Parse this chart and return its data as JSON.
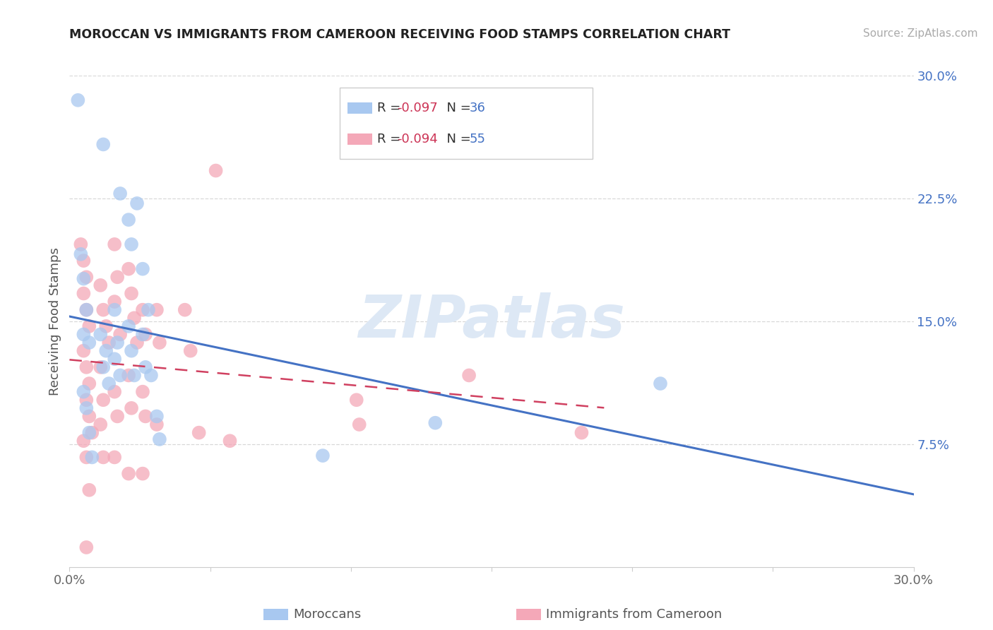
{
  "title": "MOROCCAN VS IMMIGRANTS FROM CAMEROON RECEIVING FOOD STAMPS CORRELATION CHART",
  "source": "Source: ZipAtlas.com",
  "ylabel": "Receiving Food Stamps",
  "x_min": 0.0,
  "x_max": 0.3,
  "y_min": 0.0,
  "y_max": 0.3,
  "x_ticks": [
    0.0,
    0.05,
    0.1,
    0.15,
    0.2,
    0.25,
    0.3
  ],
  "x_tick_labels": [
    "0.0%",
    "",
    "",
    "",
    "",
    "",
    "30.0%"
  ],
  "y_ticks_right": [
    0.3,
    0.225,
    0.15,
    0.075
  ],
  "y_tick_labels_right": [
    "30.0%",
    "22.5%",
    "15.0%",
    "7.5%"
  ],
  "legend_r1": "R = -0.097",
  "legend_n1": "N = 36",
  "legend_r2": "R = -0.094",
  "legend_n2": "N = 55",
  "moroccans_x": [
    0.003,
    0.012,
    0.018,
    0.021,
    0.022,
    0.024,
    0.026,
    0.028,
    0.032,
    0.004,
    0.005,
    0.006,
    0.005,
    0.007,
    0.011,
    0.013,
    0.012,
    0.014,
    0.016,
    0.017,
    0.016,
    0.018,
    0.021,
    0.022,
    0.023,
    0.026,
    0.027,
    0.029,
    0.031,
    0.005,
    0.006,
    0.007,
    0.008,
    0.21,
    0.13,
    0.09
  ],
  "moroccans_y": [
    0.285,
    0.258,
    0.228,
    0.212,
    0.197,
    0.222,
    0.182,
    0.157,
    0.078,
    0.191,
    0.176,
    0.157,
    0.142,
    0.137,
    0.142,
    0.132,
    0.122,
    0.112,
    0.157,
    0.137,
    0.127,
    0.117,
    0.147,
    0.132,
    0.117,
    0.142,
    0.122,
    0.117,
    0.092,
    0.107,
    0.097,
    0.082,
    0.067,
    0.112,
    0.088,
    0.068
  ],
  "cameroon_x": [
    0.004,
    0.005,
    0.006,
    0.005,
    0.006,
    0.007,
    0.011,
    0.012,
    0.013,
    0.014,
    0.016,
    0.017,
    0.016,
    0.018,
    0.021,
    0.022,
    0.023,
    0.024,
    0.026,
    0.027,
    0.031,
    0.032,
    0.041,
    0.043,
    0.052,
    0.005,
    0.006,
    0.007,
    0.006,
    0.007,
    0.008,
    0.011,
    0.012,
    0.016,
    0.017,
    0.021,
    0.022,
    0.026,
    0.027,
    0.031,
    0.046,
    0.057,
    0.102,
    0.103,
    0.142,
    0.005,
    0.006,
    0.007,
    0.011,
    0.012,
    0.016,
    0.021,
    0.026,
    0.182,
    0.006
  ],
  "cameroon_y": [
    0.197,
    0.187,
    0.177,
    0.167,
    0.157,
    0.147,
    0.172,
    0.157,
    0.147,
    0.137,
    0.197,
    0.177,
    0.162,
    0.142,
    0.182,
    0.167,
    0.152,
    0.137,
    0.157,
    0.142,
    0.157,
    0.137,
    0.157,
    0.132,
    0.242,
    0.132,
    0.122,
    0.112,
    0.102,
    0.092,
    0.082,
    0.122,
    0.102,
    0.107,
    0.092,
    0.117,
    0.097,
    0.107,
    0.092,
    0.087,
    0.082,
    0.077,
    0.102,
    0.087,
    0.117,
    0.077,
    0.067,
    0.047,
    0.087,
    0.067,
    0.067,
    0.057,
    0.057,
    0.082,
    0.012
  ],
  "moroccans_color": "#a8c8f0",
  "cameroon_color": "#f4a8b8",
  "moroccans_line_color": "#4472c4",
  "cameroon_line_color": "#d04060",
  "watermark_text": "ZIPatlas",
  "watermark_color": "#dde8f5",
  "background_color": "#ffffff",
  "grid_color": "#d8d8d8"
}
